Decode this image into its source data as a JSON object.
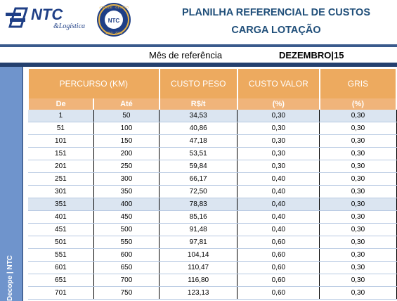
{
  "header": {
    "logo_text": "NTC",
    "logo_sub": "&Logística",
    "seal_text": "ATITUDE · GESTÃO",
    "seal_years": "1963 · 2013",
    "seal_inner": "NTC",
    "title_line1": "PLANILHA REFERENCIAL DE CUSTOS",
    "title_line2": "CARGA LOTAÇÃO"
  },
  "reference": {
    "label": "Mês de referência",
    "value": "DEZEMBRO|15"
  },
  "side_label": "Decope | NTC",
  "table": {
    "headers": [
      "PERCURSO (KM)",
      "CUSTO PESO",
      "CUSTO VALOR",
      "GRIS"
    ],
    "subheaders": [
      "De",
      "Até",
      "R$/t",
      "(%)",
      "(%)"
    ],
    "rows": [
      {
        "de": "1",
        "ate": "50",
        "peso": "34,53",
        "valor": "0,30",
        "gris": "0,30",
        "hl": true
      },
      {
        "de": "51",
        "ate": "100",
        "peso": "40,86",
        "valor": "0,30",
        "gris": "0,30",
        "hl": false
      },
      {
        "de": "101",
        "ate": "150",
        "peso": "47,18",
        "valor": "0,30",
        "gris": "0,30",
        "hl": false
      },
      {
        "de": "151",
        "ate": "200",
        "peso": "53,51",
        "valor": "0,30",
        "gris": "0,30",
        "hl": false
      },
      {
        "de": "201",
        "ate": "250",
        "peso": "59,84",
        "valor": "0,30",
        "gris": "0,30",
        "hl": false
      },
      {
        "de": "251",
        "ate": "300",
        "peso": "66,17",
        "valor": "0,40",
        "gris": "0,30",
        "hl": false
      },
      {
        "de": "301",
        "ate": "350",
        "peso": "72,50",
        "valor": "0,40",
        "gris": "0,30",
        "hl": false
      },
      {
        "de": "351",
        "ate": "400",
        "peso": "78,83",
        "valor": "0,40",
        "gris": "0,30",
        "hl": true
      },
      {
        "de": "401",
        "ate": "450",
        "peso": "85,16",
        "valor": "0,40",
        "gris": "0,30",
        "hl": false
      },
      {
        "de": "451",
        "ate": "500",
        "peso": "91,48",
        "valor": "0,40",
        "gris": "0,30",
        "hl": false
      },
      {
        "de": "501",
        "ate": "550",
        "peso": "97,81",
        "valor": "0,60",
        "gris": "0,30",
        "hl": false
      },
      {
        "de": "551",
        "ate": "600",
        "peso": "104,14",
        "valor": "0,60",
        "gris": "0,30",
        "hl": false
      },
      {
        "de": "601",
        "ate": "650",
        "peso": "110,47",
        "valor": "0,60",
        "gris": "0,30",
        "hl": false
      },
      {
        "de": "651",
        "ate": "700",
        "peso": "116,80",
        "valor": "0,60",
        "gris": "0,30",
        "hl": false
      },
      {
        "de": "701",
        "ate": "750",
        "peso": "123,13",
        "valor": "0,60",
        "gris": "0,30",
        "hl": false
      }
    ]
  },
  "colors": {
    "header_orange": "#edaa5f",
    "title_blue": "#1f4e79",
    "frame_blue": "#24406e",
    "side_blue": "#6f94cc",
    "highlight_row": "#dbe5f1"
  }
}
